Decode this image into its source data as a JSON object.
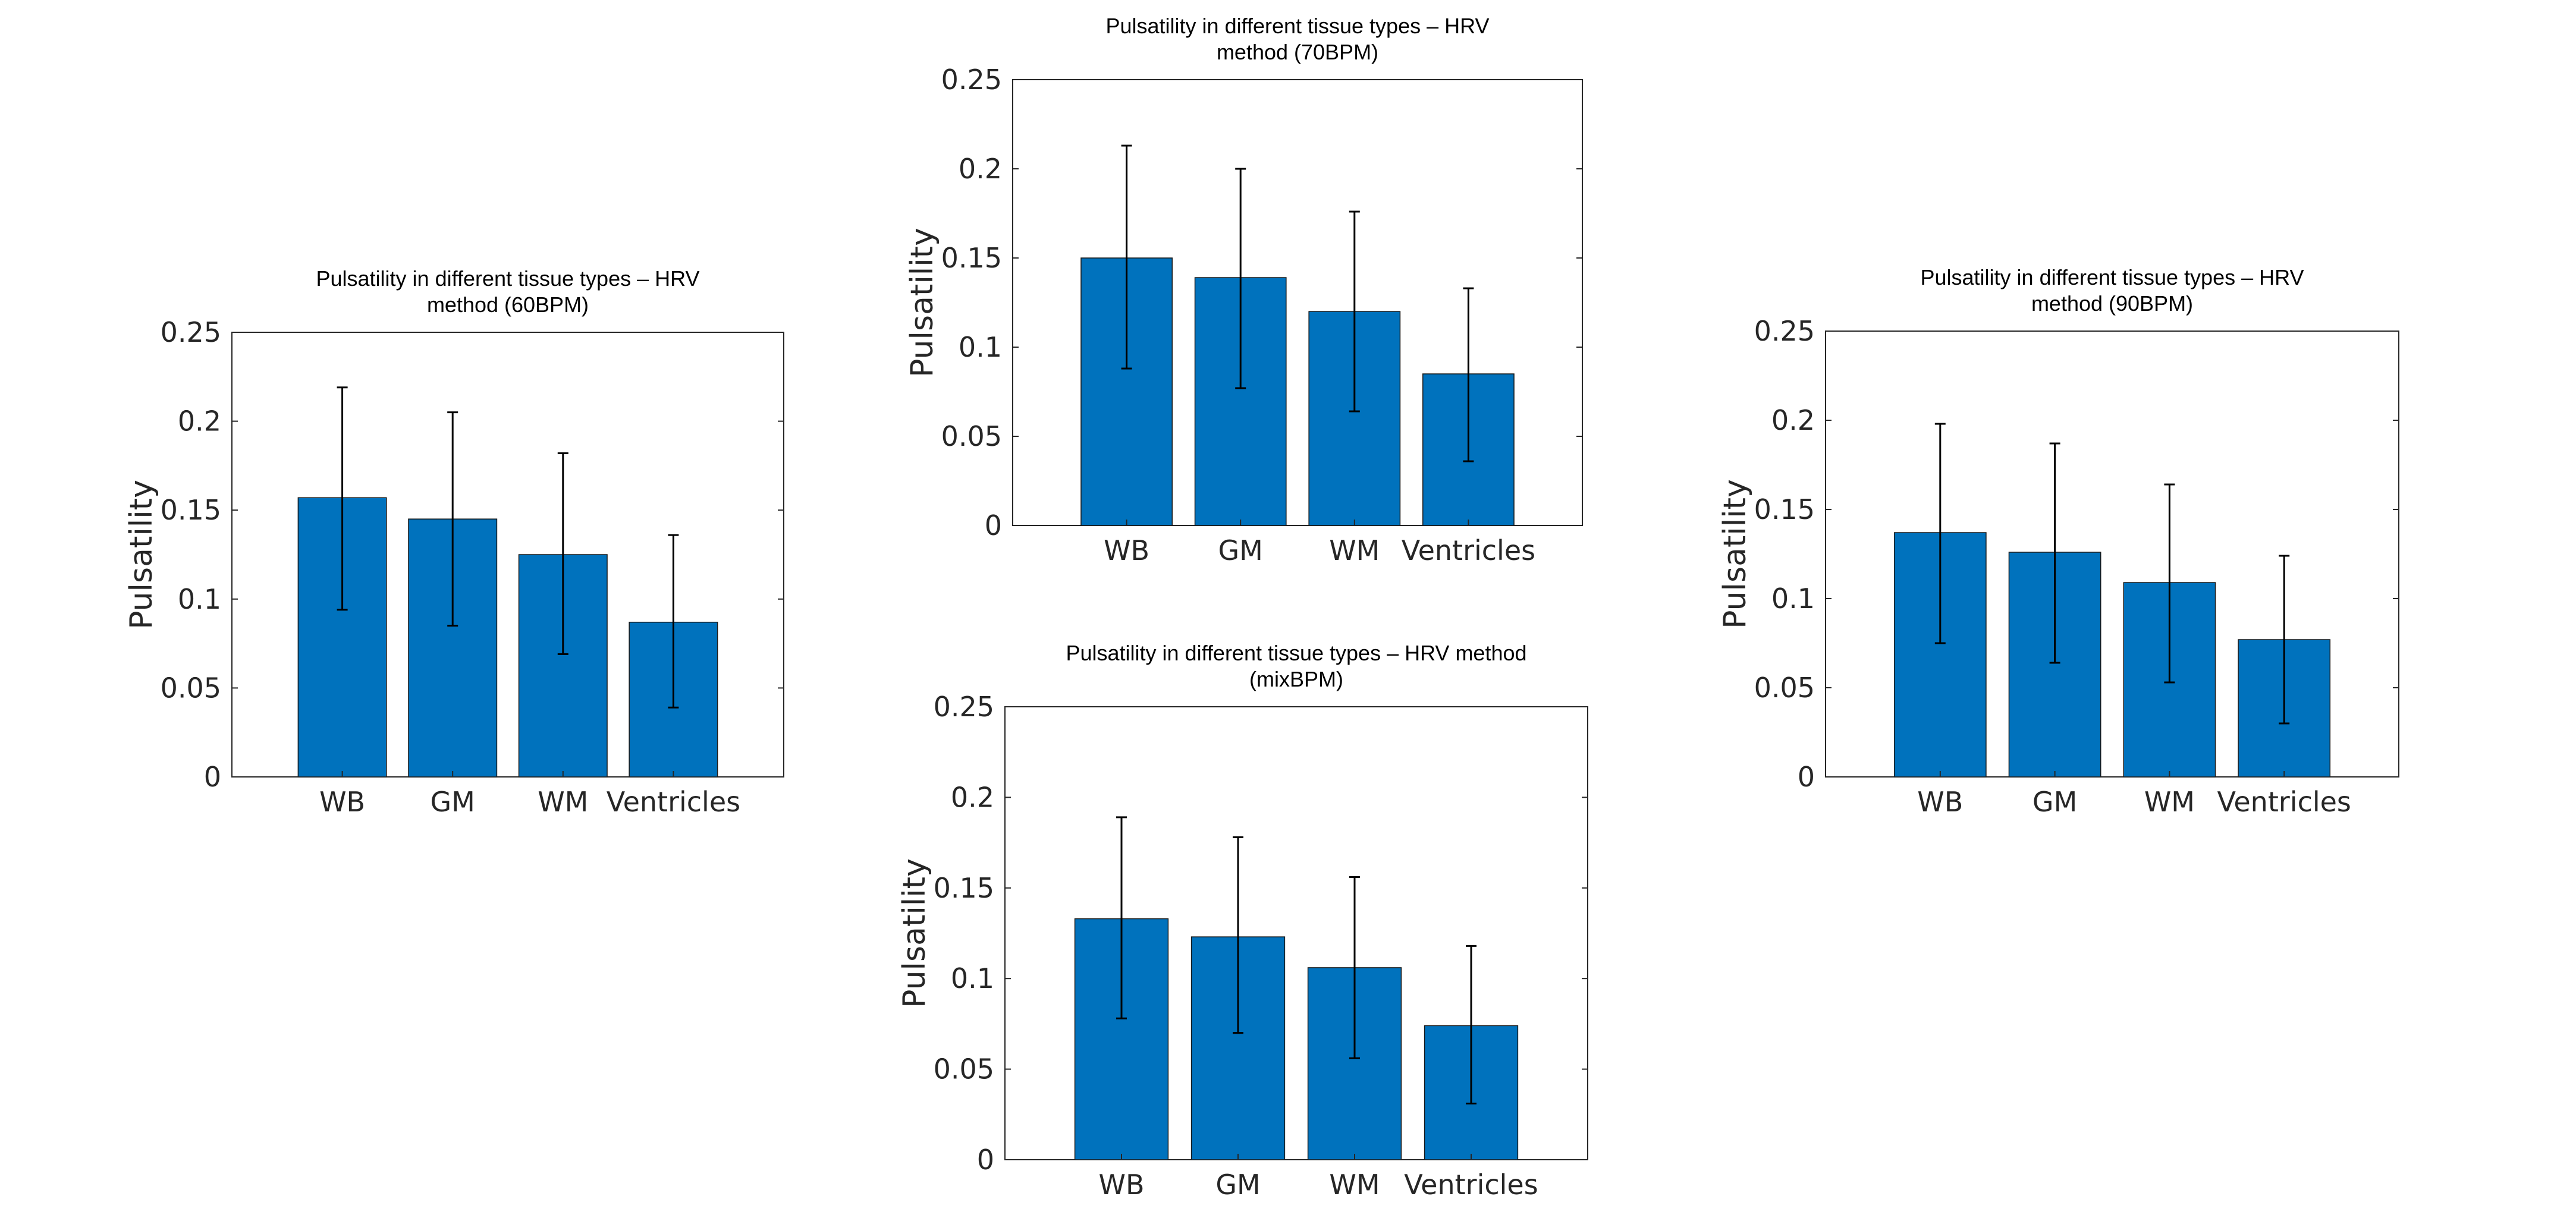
{
  "chart_data": [
    {
      "type": "bar",
      "title_lines": [
        "Pulsatility in different tissue types – HRV",
        "method (60BPM)"
      ],
      "ylabel": "Pulsatility",
      "categories": [
        "WB",
        "GM",
        "WM",
        "Ventricles"
      ],
      "values": [
        0.157,
        0.145,
        0.125,
        0.087
      ],
      "error_low": [
        0.094,
        0.085,
        0.069,
        0.039
      ],
      "error_high": [
        0.219,
        0.205,
        0.182,
        0.136
      ],
      "ylim": [
        0,
        0.25
      ],
      "yticks": [
        "0",
        "0.05",
        "0.1",
        "0.15",
        "0.2",
        "0.25"
      ],
      "bar_color": "#0072BD"
    },
    {
      "type": "bar",
      "title_lines": [
        "Pulsatility in different tissue types – HRV",
        "method (70BPM)"
      ],
      "ylabel": "Pulsatility",
      "categories": [
        "WB",
        "GM",
        "WM",
        "Ventricles"
      ],
      "values": [
        0.15,
        0.139,
        0.12,
        0.085
      ],
      "error_low": [
        0.088,
        0.077,
        0.064,
        0.036
      ],
      "error_high": [
        0.213,
        0.2,
        0.176,
        0.133
      ],
      "ylim": [
        0,
        0.25
      ],
      "yticks": [
        "0",
        "0.05",
        "0.1",
        "0.15",
        "0.2",
        "0.25"
      ],
      "bar_color": "#0072BD"
    },
    {
      "type": "bar",
      "title_lines": [
        "Pulsatility in different tissue types – HRV method",
        "(mixBPM)"
      ],
      "ylabel": "Pulsatility",
      "categories": [
        "WB",
        "GM",
        "WM",
        "Ventricles"
      ],
      "values": [
        0.133,
        0.123,
        0.106,
        0.074
      ],
      "error_low": [
        0.078,
        0.07,
        0.056,
        0.031
      ],
      "error_high": [
        0.189,
        0.178,
        0.156,
        0.118
      ],
      "ylim": [
        0,
        0.25
      ],
      "yticks": [
        "0",
        "0.05",
        "0.1",
        "0.15",
        "0.2",
        "0.25"
      ],
      "bar_color": "#0072BD"
    },
    {
      "type": "bar",
      "title_lines": [
        "Pulsatility in different tissue types – HRV",
        "method (90BPM)"
      ],
      "ylabel": "Pulsatility",
      "categories": [
        "WB",
        "GM",
        "WM",
        "Ventricles"
      ],
      "values": [
        0.137,
        0.126,
        0.109,
        0.077
      ],
      "error_low": [
        0.075,
        0.064,
        0.053,
        0.03
      ],
      "error_high": [
        0.198,
        0.187,
        0.164,
        0.124
      ],
      "ylim": [
        0,
        0.25
      ],
      "yticks": [
        "0",
        "0.05",
        "0.1",
        "0.15",
        "0.2",
        "0.25"
      ],
      "bar_color": "#0072BD"
    }
  ]
}
